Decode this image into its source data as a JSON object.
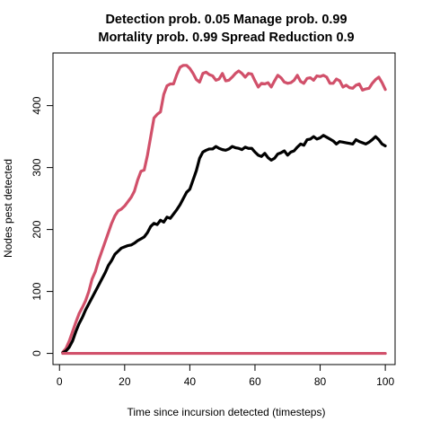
{
  "chart_data": {
    "type": "line",
    "title_line1": "Detection prob. 0.05 Manage prob. 0.99",
    "title_line2": "Mortality prob. 0.99 Spread Reduction 0.9",
    "xlabel": "Time since incursion detected (timesteps)",
    "ylabel": "Nodes pest detected",
    "xlim": [
      -2,
      103
    ],
    "ylim": [
      -18,
      485
    ],
    "x_ticks": [
      0,
      20,
      40,
      60,
      80,
      100
    ],
    "y_ticks": [
      0,
      100,
      200,
      300,
      400
    ],
    "grid": false,
    "series": [
      {
        "color": "#d1506a",
        "x": [
          1,
          2,
          3,
          4,
          5,
          6,
          7,
          8,
          9,
          10,
          11,
          12,
          13,
          14,
          15,
          16,
          17,
          18,
          19,
          20,
          21,
          22,
          23,
          24,
          25,
          26,
          27,
          28,
          29,
          30,
          31,
          32,
          33,
          34,
          35,
          36,
          37,
          38,
          39,
          40,
          41,
          42,
          43,
          44,
          45,
          46,
          47,
          48,
          49,
          50,
          51,
          52,
          53,
          54,
          55,
          56,
          57,
          58,
          59,
          60,
          61,
          62,
          63,
          64,
          65,
          66,
          67,
          68,
          69,
          70,
          71,
          72,
          73,
          74,
          75,
          76,
          77,
          78,
          79,
          80,
          81,
          82,
          83,
          84,
          85,
          86,
          87,
          88,
          89,
          90,
          91,
          92,
          93,
          94,
          95,
          96,
          97,
          98,
          99,
          100
        ],
        "values": [
          2,
          8,
          20,
          35,
          50,
          64,
          74,
          85,
          100,
          120,
          132,
          150,
          165,
          180,
          195,
          210,
          222,
          230,
          233,
          238,
          245,
          252,
          262,
          280,
          294,
          296,
          320,
          350,
          380,
          386,
          390,
          418,
          432,
          435,
          435,
          450,
          462,
          465,
          465,
          460,
          452,
          442,
          438,
          452,
          454,
          450,
          448,
          441,
          443,
          452,
          440,
          441,
          446,
          452,
          456,
          452,
          446,
          452,
          451,
          440,
          430,
          436,
          435,
          437,
          430,
          440,
          449,
          445,
          438,
          436,
          437,
          441,
          449,
          439,
          436,
          444,
          445,
          441,
          448,
          447,
          449,
          446,
          436,
          436,
          443,
          440,
          430,
          433,
          429,
          428,
          433,
          435,
          425,
          427,
          428,
          436,
          442,
          446,
          437,
          426
        ]
      },
      {
        "color": "#000000",
        "x": [
          1,
          2,
          3,
          4,
          5,
          6,
          7,
          8,
          9,
          10,
          11,
          12,
          13,
          14,
          15,
          16,
          17,
          18,
          19,
          20,
          21,
          22,
          23,
          24,
          25,
          26,
          27,
          28,
          29,
          30,
          31,
          32,
          33,
          34,
          35,
          36,
          37,
          38,
          39,
          40,
          41,
          42,
          43,
          44,
          45,
          46,
          47,
          48,
          49,
          50,
          51,
          52,
          53,
          54,
          55,
          56,
          57,
          58,
          59,
          60,
          61,
          62,
          63,
          64,
          65,
          66,
          67,
          68,
          69,
          70,
          71,
          72,
          73,
          74,
          75,
          76,
          77,
          78,
          79,
          80,
          81,
          82,
          83,
          84,
          85,
          86,
          87,
          88,
          89,
          90,
          91,
          92,
          93,
          94,
          95,
          96,
          97,
          98,
          99,
          100
        ],
        "values": [
          1,
          4,
          10,
          20,
          35,
          48,
          58,
          70,
          80,
          90,
          100,
          110,
          120,
          130,
          142,
          150,
          160,
          165,
          170,
          172,
          174,
          175,
          178,
          182,
          185,
          188,
          195,
          205,
          210,
          208,
          215,
          212,
          220,
          218,
          225,
          232,
          240,
          250,
          260,
          265,
          280,
          295,
          315,
          325,
          328,
          330,
          330,
          334,
          331,
          329,
          328,
          330,
          334,
          332,
          331,
          329,
          333,
          331,
          331,
          325,
          320,
          318,
          323,
          316,
          312,
          315,
          322,
          324,
          327,
          320,
          325,
          327,
          333,
          338,
          336,
          345,
          346,
          350,
          346,
          348,
          352,
          349,
          346,
          343,
          338,
          342,
          341,
          340,
          339,
          338,
          345,
          342,
          340,
          338,
          341,
          345,
          350,
          345,
          338,
          335
        ]
      },
      {
        "color": "#d1506a",
        "x": [
          1,
          100
        ],
        "values": [
          0,
          0
        ]
      }
    ]
  }
}
